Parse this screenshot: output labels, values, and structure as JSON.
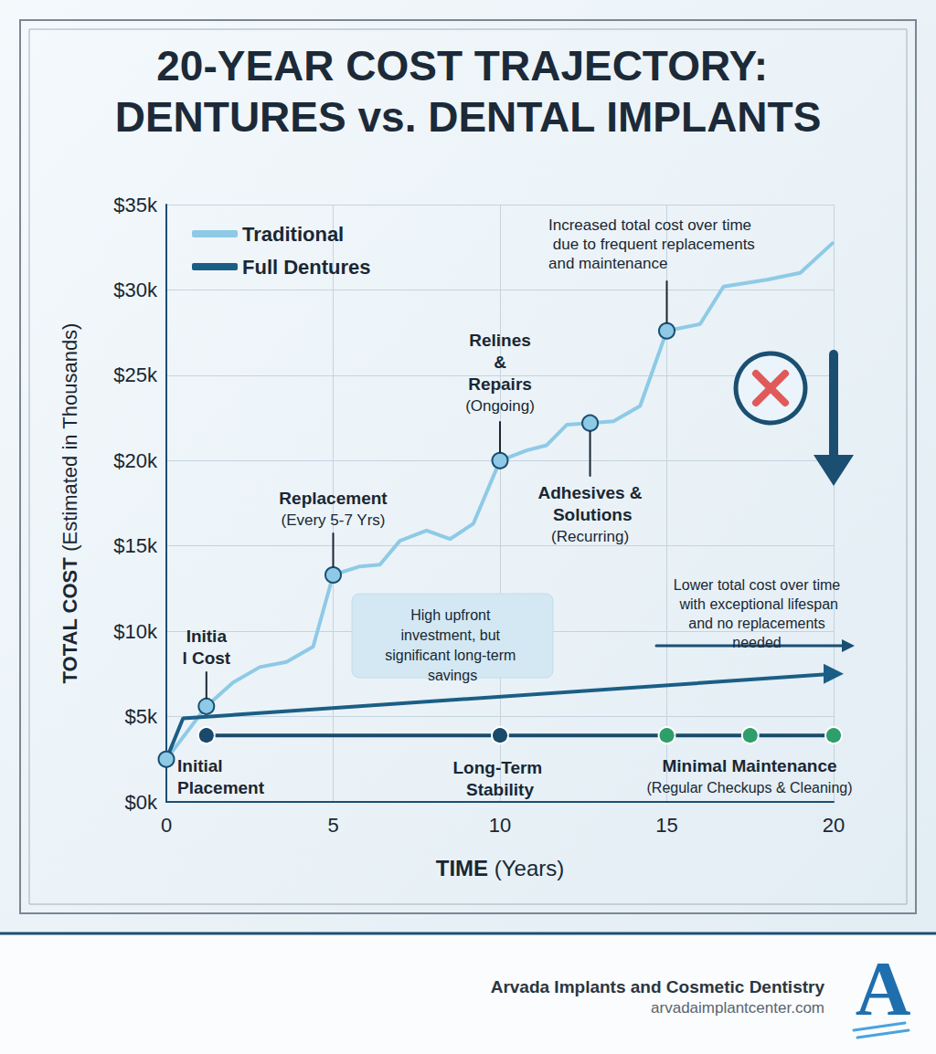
{
  "title": "20-YEAR COST TRAJECTORY: DENTURES vs. DENTAL IMPLANTS",
  "chart_data": {
    "type": "line",
    "x_label": "TIME (Years)",
    "y_label": "TOTAL COST (Estimated in Thousands)",
    "xlim": [
      0,
      20
    ],
    "xticks": [
      0,
      5,
      10,
      15,
      20
    ],
    "ylim": [
      0,
      35
    ],
    "yticks": [
      {
        "value": 0,
        "label": "$0k"
      },
      {
        "value": 5,
        "label": "$5k"
      },
      {
        "value": 10,
        "label": "$10k"
      },
      {
        "value": 15,
        "label": "$15k"
      },
      {
        "value": 20,
        "label": "$20k"
      },
      {
        "value": 25,
        "label": "$25k"
      },
      {
        "value": 30,
        "label": "$30k"
      },
      {
        "value": 35,
        "label": "$35k"
      }
    ],
    "grid": true,
    "legend": "upper left",
    "series": [
      {
        "name": "Traditional",
        "color": "#8ecae6",
        "marker": "none",
        "x": [
          0,
          1.2,
          2,
          2.8,
          3.6,
          4.4,
          5,
          5.8,
          6.4,
          7,
          7.8,
          8.5,
          9.2,
          10,
          10.8,
          11.4,
          12,
          12.7,
          13.4,
          14.2,
          15,
          16,
          16.7,
          18,
          19,
          20
        ],
        "values": [
          2.5,
          5.6,
          7,
          7.9,
          8.2,
          9.1,
          13.3,
          13.8,
          13.9,
          15.3,
          15.9,
          15.4,
          16.3,
          20,
          20.6,
          20.9,
          22.1,
          22.2,
          22.3,
          23.2,
          27.6,
          28,
          30.2,
          30.6,
          31,
          32.8
        ]
      },
      {
        "name": "Full Dentures",
        "color": "#1b5e85",
        "marker": "arrow",
        "x": [
          0,
          0.5,
          20
        ],
        "values": [
          2.5,
          4.9,
          7.5
        ]
      },
      {
        "color": "#1a4a6b",
        "marker": "circle",
        "colors": [
          "#1a4a6b",
          "#1a4a6b",
          "#2e9e6b",
          "#2e9e6b",
          "#2e9e6b"
        ],
        "x": [
          1.2,
          10,
          15,
          17.5,
          20
        ],
        "values": [
          3.9,
          3.9,
          3.9,
          3.9,
          3.9
        ]
      }
    ],
    "annotations": [
      {
        "text": "Initial Placement",
        "series": 0,
        "at": [
          0,
          2.5
        ]
      },
      {
        "text": "Initial Cost",
        "series": 0,
        "at": [
          1.2,
          5.6
        ]
      },
      {
        "text": "Replacement",
        "subtext": "(Every 5-7 Yrs)",
        "series": 0,
        "at": [
          5,
          13.3
        ]
      },
      {
        "text": "Relines & Repairs",
        "subtext": "(Ongoing)",
        "series": 0,
        "at": [
          10,
          20
        ]
      },
      {
        "text": "Adhesives & Solutions",
        "subtext": "(Recurring)",
        "series": 0,
        "at": [
          12.7,
          22.2
        ]
      },
      {
        "text": "Increased total cost over time due to frequent replacements and maintenance",
        "series": 0,
        "at": [
          15,
          27.6
        ]
      },
      {
        "text": "High upfront investment, but significant long-term savings"
      },
      {
        "text": "Lower total cost over time with exceptional lifespan and no replacements needed"
      },
      {
        "text": "Long-Term Stability",
        "series": 2,
        "at": [
          10,
          3.9
        ]
      },
      {
        "text": "Minimal Maintenance",
        "subtext": "(Regular Checkups & Cleaning)"
      }
    ]
  },
  "footer": {
    "name": "Arvada Implants and Cosmetic Dentistry",
    "url": "arvadaimplantcenter.com",
    "logo": "A"
  }
}
